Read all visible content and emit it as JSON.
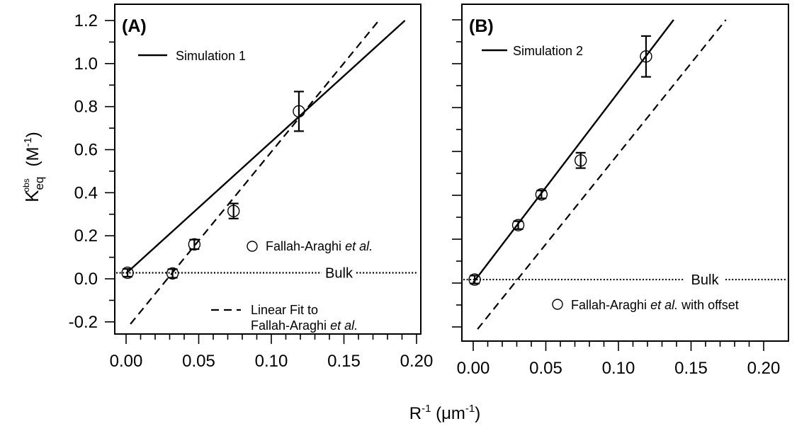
{
  "chart_data": {
    "type": "scatter",
    "xlabel": {
      "base": "R",
      "sup": "-1",
      "unit_open": " (μm",
      "unit_sup": "-1",
      "unit_close": ")"
    },
    "ylabel": {
      "base": "K",
      "sub": "eq",
      "sup": "obs",
      "unit_open": "(M",
      "unit_sup": "-1",
      "unit_close": ")"
    },
    "xlim": [
      0,
      0.2
    ],
    "ylim": [
      -0.25,
      1.2
    ],
    "x_ticks": [
      "0.00",
      "0.05",
      "0.10",
      "0.15",
      "0.20"
    ],
    "y_ticks": [
      "-0.2",
      "0.0",
      "0.2",
      "0.4",
      "0.6",
      "0.8",
      "1.0",
      "1.2"
    ],
    "panels": [
      {
        "label": "(A)",
        "bulk_label": "Bulk",
        "bulk_value": 0.028,
        "legend": [
          {
            "kind": "solid",
            "text": "Simulation 1"
          },
          {
            "kind": "marker",
            "text_parts": [
              "Fallah-Araghi ",
              "et al.",
              ""
            ]
          },
          {
            "kind": "dashed",
            "text_lines": [
              [
                "Linear Fit to"
              ],
              [
                "Fallah-Araghi ",
                "et al.",
                ""
              ]
            ]
          }
        ],
        "points": [
          {
            "x": 0.001,
            "y": 0.028,
            "err": 0.018
          },
          {
            "x": 0.032,
            "y": 0.025,
            "err": 0.02
          },
          {
            "x": 0.047,
            "y": 0.16,
            "err": 0.022
          },
          {
            "x": 0.074,
            "y": 0.315,
            "err": 0.035
          },
          {
            "x": 0.119,
            "y": 0.778,
            "err": 0.092
          }
        ],
        "solid_line": {
          "x": [
            0.0,
            0.192
          ],
          "y": [
            0.025,
            1.2
          ]
        },
        "dashed_line": {
          "x": [
            0.003,
            0.174
          ],
          "y": [
            -0.21,
            1.2
          ]
        }
      },
      {
        "label": "(B)",
        "bulk_label": "Bulk",
        "bulk_value": 0.016,
        "legend": [
          {
            "kind": "solid",
            "text": "Simulation 2"
          },
          {
            "kind": "marker",
            "text_parts": [
              "Fallah-Araghi ",
              "et al.",
              " with offset"
            ]
          }
        ],
        "points": [
          {
            "x": 0.001,
            "y": 0.016,
            "err": 0.018
          },
          {
            "x": 0.031,
            "y": 0.264,
            "err": 0.018
          },
          {
            "x": 0.047,
            "y": 0.404,
            "err": 0.018
          },
          {
            "x": 0.074,
            "y": 0.559,
            "err": 0.035
          },
          {
            "x": 0.119,
            "y": 1.033,
            "err": 0.093
          }
        ],
        "solid_line": {
          "x": [
            0.0,
            0.138
          ],
          "y": [
            0.002,
            1.2
          ]
        },
        "dashed_line": {
          "x": [
            0.003,
            0.174
          ],
          "y": [
            -0.21,
            1.2
          ]
        }
      }
    ]
  }
}
